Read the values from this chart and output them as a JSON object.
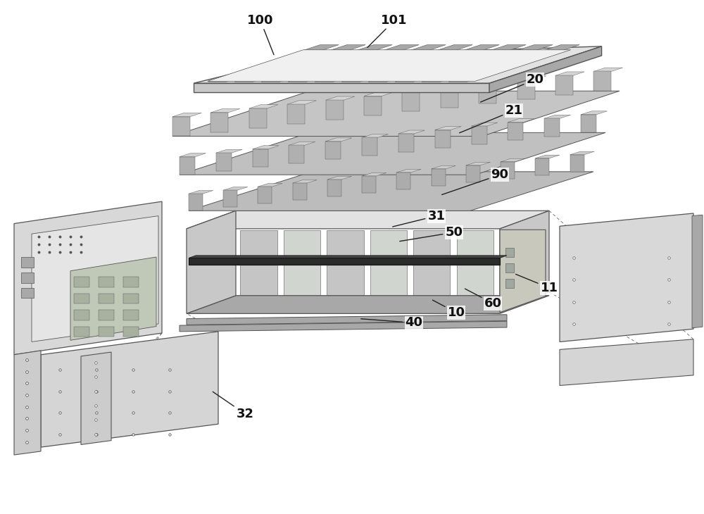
{
  "background_color": "#ffffff",
  "fig_width": 10.0,
  "fig_height": 7.3,
  "dpi": 100,
  "edge_col": "#555555",
  "gray_light": "#e2e2e2",
  "gray_mid": "#c8c8c8",
  "gray_dark": "#a8a8a8",
  "gray_darker": "#888888",
  "label_fontsize": 13,
  "annotation_line_color": "#222222",
  "annotations": {
    "100": [
      0.37,
      0.96,
      0.39,
      0.89
    ],
    "101": [
      0.56,
      0.96,
      0.52,
      0.905
    ],
    "20": [
      0.76,
      0.845,
      0.68,
      0.8
    ],
    "21": [
      0.73,
      0.785,
      0.65,
      0.74
    ],
    "90": [
      0.71,
      0.66,
      0.625,
      0.62
    ],
    "31": [
      0.62,
      0.58,
      0.555,
      0.558
    ],
    "50": [
      0.645,
      0.548,
      0.565,
      0.53
    ],
    "11": [
      0.78,
      0.44,
      0.73,
      0.468
    ],
    "60": [
      0.7,
      0.41,
      0.658,
      0.44
    ],
    "10": [
      0.648,
      0.392,
      0.612,
      0.418
    ],
    "40": [
      0.588,
      0.372,
      0.51,
      0.38
    ],
    "32": [
      0.348,
      0.195,
      0.3,
      0.24
    ]
  }
}
